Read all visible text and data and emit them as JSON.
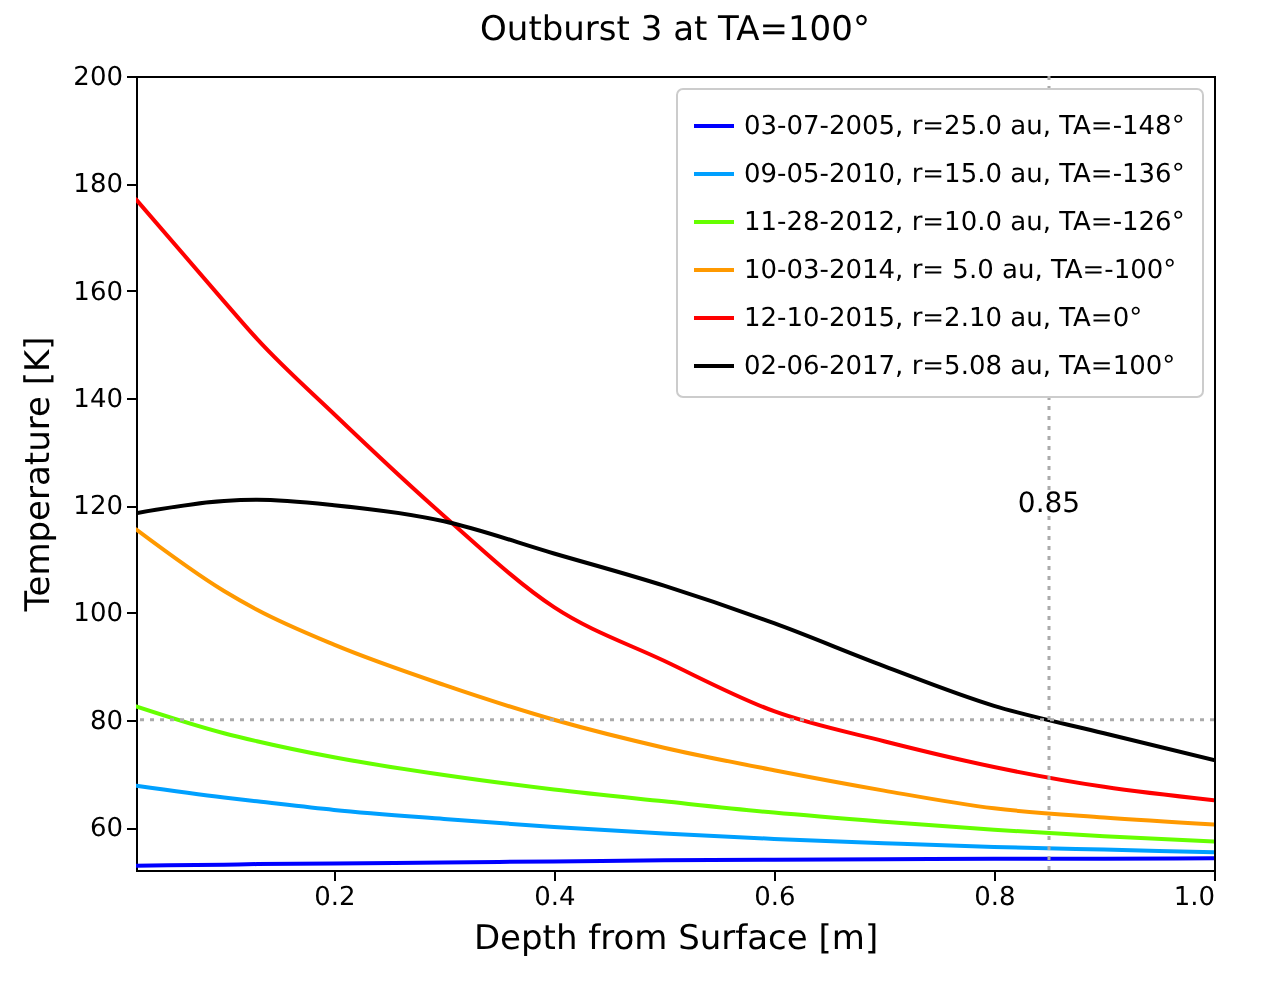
{
  "chart_data": {
    "type": "line",
    "title": "Outburst 3 at TA=100°",
    "xlabel": "Depth from Surface [m]",
    "ylabel": "Temperature [K]",
    "x": [
      0.02,
      0.1,
      0.13,
      0.2,
      0.3,
      0.4,
      0.5,
      0.6,
      0.7,
      0.8,
      0.9,
      1.0
    ],
    "series": [
      {
        "name": "03-07-2005, r=25.0 au, TA=-148°",
        "color": "#0000ff",
        "values": [
          52.8,
          53.0,
          53.1,
          53.2,
          53.4,
          53.6,
          53.8,
          53.9,
          54.0,
          54.1,
          54.1,
          54.2
        ]
      },
      {
        "name": "09-05-2010, r=15.0 au, TA=-136°",
        "color": "#00a0ff",
        "values": [
          67.7,
          65.5,
          64.8,
          63.2,
          61.5,
          60.0,
          58.8,
          57.8,
          57.0,
          56.3,
          55.8,
          55.3
        ]
      },
      {
        "name": "11-28-2012, r=10.0 au, TA=-126°",
        "color": "#66ff00",
        "values": [
          82.5,
          77.5,
          76.0,
          73.0,
          69.7,
          67.0,
          64.8,
          62.7,
          61.0,
          59.5,
          58.3,
          57.3
        ]
      },
      {
        "name": "10-03-2014, r= 5.0  au, TA=-100°",
        "color": "#ff9900",
        "values": [
          115.5,
          104.0,
          100.5,
          94.0,
          86.5,
          80.0,
          74.8,
          70.6,
          66.8,
          63.5,
          61.8,
          60.5
        ]
      },
      {
        "name": "12-10-2015, r=2.10 au, TA=0°",
        "color": "#ff0000",
        "values": [
          177.0,
          158.0,
          151.0,
          137.0,
          118.0,
          101.0,
          91.0,
          81.6,
          76.0,
          71.2,
          67.5,
          65.0
        ]
      },
      {
        "name": "02-06-2017, r=5.08 au, TA=100°",
        "color": "#000000",
        "values": [
          118.5,
          120.8,
          121.0,
          120.0,
          117.0,
          111.0,
          105.0,
          98.0,
          90.0,
          82.6,
          77.5,
          72.5
        ]
      }
    ],
    "xlim": [
      0.02,
      1.0
    ],
    "ylim": [
      52,
      200
    ],
    "xticks": [
      0.2,
      0.4,
      0.6,
      0.8,
      {
        "value": 1.0,
        "label": "1.0"
      }
    ],
    "yticks": [
      60,
      80,
      100,
      120,
      140,
      160,
      180,
      200
    ],
    "ref_lines": [
      {
        "axis": "x",
        "value": 0.85,
        "label": "0.85",
        "color": "#aaaaaa",
        "line_style": "dotted"
      },
      {
        "axis": "y",
        "value": 80,
        "color": "#aaaaaa",
        "line_style": "dotted"
      }
    ],
    "legend": "top right",
    "grid": false,
    "line_style": "solid"
  }
}
